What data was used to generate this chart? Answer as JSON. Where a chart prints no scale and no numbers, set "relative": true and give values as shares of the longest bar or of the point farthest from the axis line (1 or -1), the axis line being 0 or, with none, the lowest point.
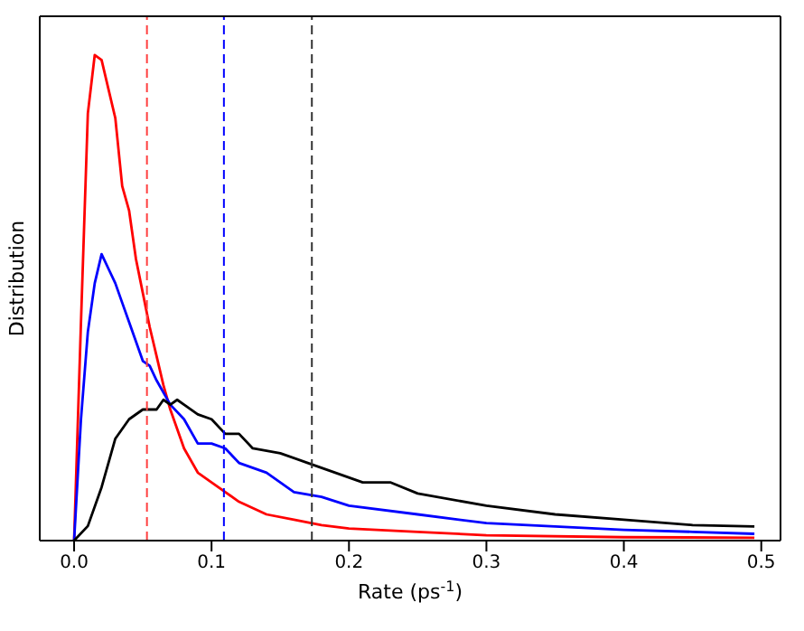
{
  "chart_data": {
    "type": "line",
    "relative": true,
    "xlabel": "Rate (ps$^{-1}$)",
    "ylabel": "Distribution",
    "xlim": [
      -0.025,
      0.514
    ],
    "xticks": [
      {
        "value": 0,
        "label": "0.0"
      },
      0.1,
      0.2,
      0.3,
      0.4,
      0.5
    ],
    "marker": "none",
    "line_style": "solid",
    "grid": false,
    "legend": false,
    "series": [
      {
        "color": "#ff0000",
        "x": [
          0,
          0.005,
          0.01,
          0.015,
          0.02,
          0.025,
          0.03,
          0.035,
          0.04,
          0.045,
          0.05,
          0.055,
          0.06,
          0.065,
          0.07,
          0.08,
          0.09,
          0.1,
          0.12,
          0.14,
          0.16,
          0.18,
          0.2,
          0.25,
          0.3,
          0.4,
          0.495
        ],
        "values": [
          0,
          0.45,
          0.88,
          1.0,
          0.99,
          0.93,
          0.87,
          0.73,
          0.68,
          0.58,
          0.51,
          0.44,
          0.38,
          0.32,
          0.27,
          0.19,
          0.14,
          0.12,
          0.08,
          0.054,
          0.043,
          0.032,
          0.025,
          0.018,
          0.011,
          0.007,
          0.006
        ]
      },
      {
        "color": "#0000ff",
        "x": [
          0,
          0.005,
          0.01,
          0.015,
          0.02,
          0.025,
          0.03,
          0.035,
          0.04,
          0.045,
          0.05,
          0.055,
          0.06,
          0.07,
          0.08,
          0.09,
          0.1,
          0.11,
          0.12,
          0.14,
          0.16,
          0.18,
          0.2,
          0.25,
          0.3,
          0.35,
          0.4,
          0.45,
          0.495
        ],
        "values": [
          0,
          0.25,
          0.43,
          0.53,
          0.59,
          0.56,
          0.53,
          0.49,
          0.45,
          0.41,
          0.37,
          0.36,
          0.33,
          0.28,
          0.25,
          0.2,
          0.2,
          0.19,
          0.16,
          0.14,
          0.1,
          0.09,
          0.072,
          0.054,
          0.036,
          0.029,
          0.022,
          0.018,
          0.014
        ]
      },
      {
        "color": "#000000",
        "x": [
          0,
          0.01,
          0.02,
          0.03,
          0.04,
          0.05,
          0.06,
          0.065,
          0.07,
          0.075,
          0.08,
          0.09,
          0.1,
          0.11,
          0.12,
          0.13,
          0.15,
          0.17,
          0.19,
          0.21,
          0.23,
          0.25,
          0.3,
          0.35,
          0.4,
          0.45,
          0.495
        ],
        "values": [
          0,
          0.03,
          0.11,
          0.21,
          0.25,
          0.27,
          0.27,
          0.29,
          0.28,
          0.29,
          0.28,
          0.26,
          0.25,
          0.22,
          0.22,
          0.19,
          0.18,
          0.16,
          0.14,
          0.12,
          0.12,
          0.097,
          0.072,
          0.054,
          0.043,
          0.032,
          0.029
        ]
      }
    ],
    "ref_lines": [
      {
        "axis": "x",
        "value": 0.053,
        "color": "#ff4040",
        "line_style": "dashed"
      },
      {
        "axis": "x",
        "value": 0.109,
        "color": "#0000ff",
        "line_style": "dashed"
      },
      {
        "axis": "x",
        "value": 0.173,
        "color": "#333333",
        "line_style": "dashed"
      }
    ]
  }
}
